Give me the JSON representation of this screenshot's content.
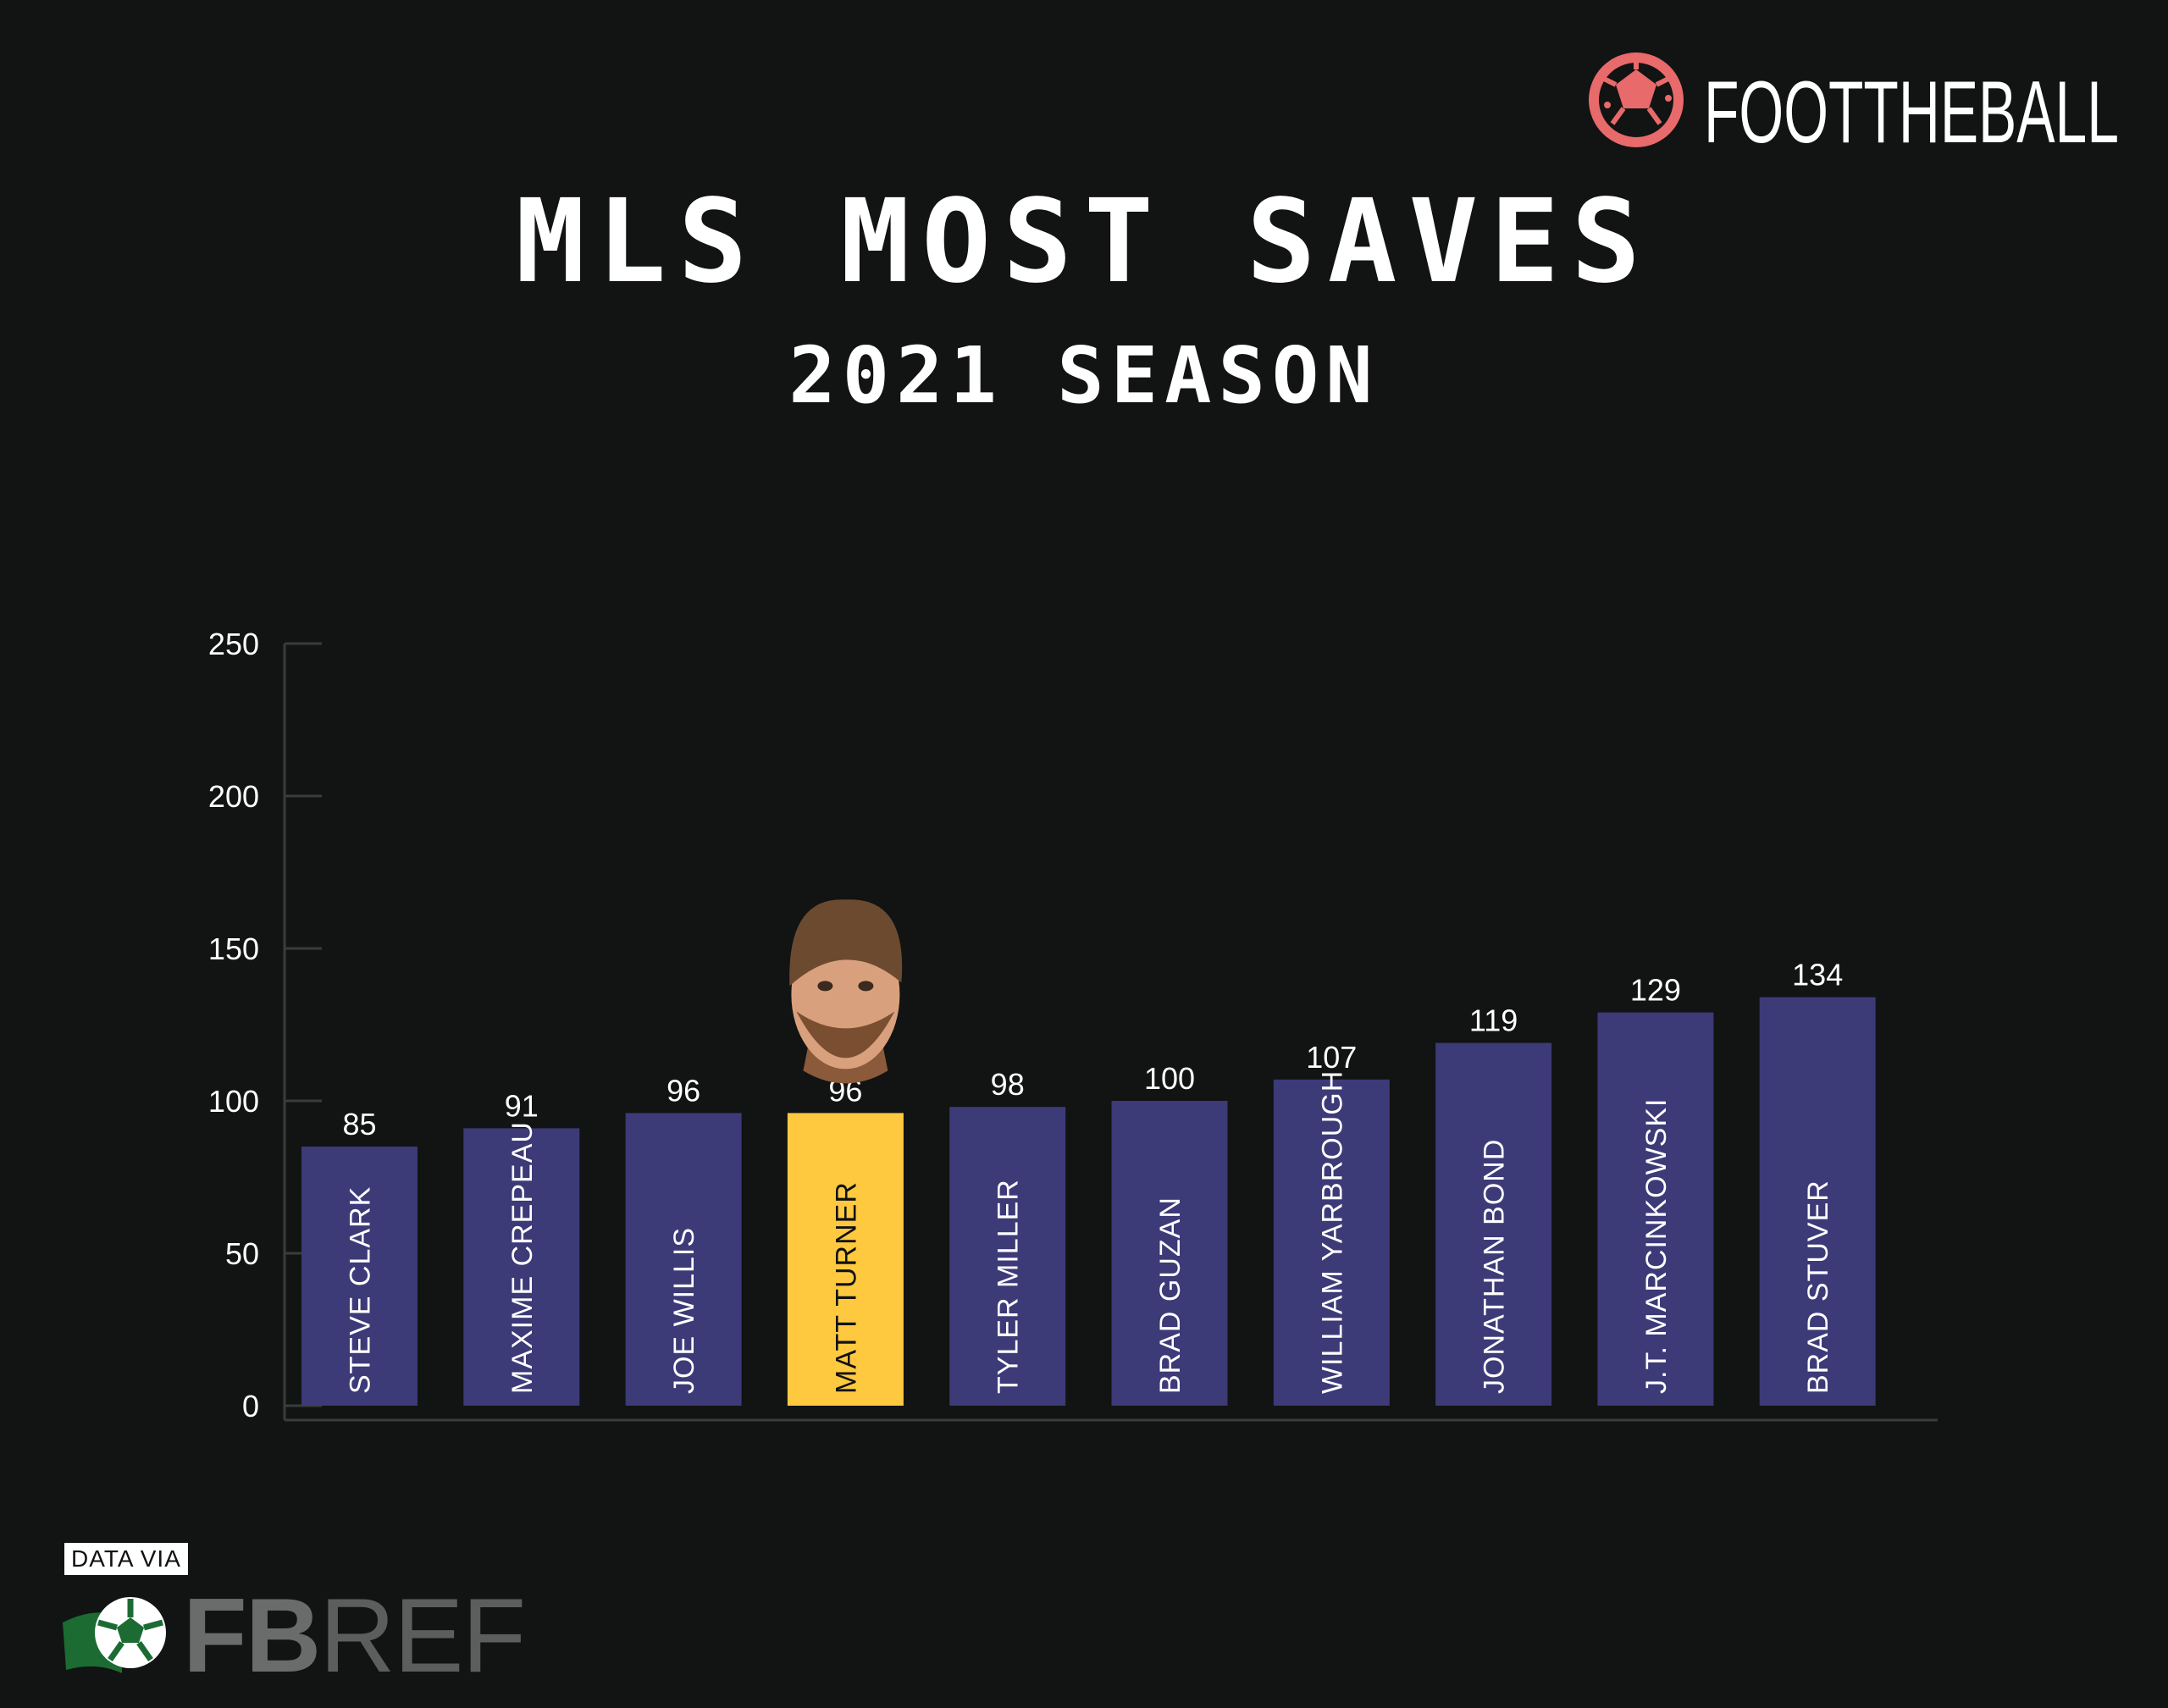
{
  "brand": {
    "name": "FOOTTHEBALL",
    "logo_icon": "football-icon",
    "accent": "#e86a6a"
  },
  "header": {
    "title": "MLS MOST SAVES",
    "subtitle": "2021 SEASON"
  },
  "chart_data": {
    "type": "bar",
    "title": "MLS MOST SAVES",
    "subtitle": "2021 SEASON",
    "xlabel": "",
    "ylabel": "",
    "ylim": [
      0,
      250
    ],
    "yticks": [
      0,
      50,
      100,
      150,
      200,
      250
    ],
    "categories": [
      "STEVE CLARK",
      "MAXIME CREPEAU",
      "JOE WILLIS",
      "MATT TURNER",
      "TYLER MILLER",
      "BRAD GUZAN",
      "WILLIAM YARBROUGH",
      "JONATHAN BOND",
      "J.T. MARCINKOWSKI",
      "BRAD STUVER"
    ],
    "values": [
      85,
      91,
      96,
      96,
      98,
      100,
      107,
      119,
      129,
      134
    ],
    "highlight": "MATT TURNER",
    "highlight_image": "player-photo",
    "bar_color": "#3d3a78",
    "highlight_color": "#fec93f",
    "grid": false,
    "legend": "none"
  },
  "source": {
    "prefix": "DATA VIA",
    "name_bold": "FB",
    "name_rest": "REF",
    "logo_icon": "fbref-ball-icon"
  }
}
